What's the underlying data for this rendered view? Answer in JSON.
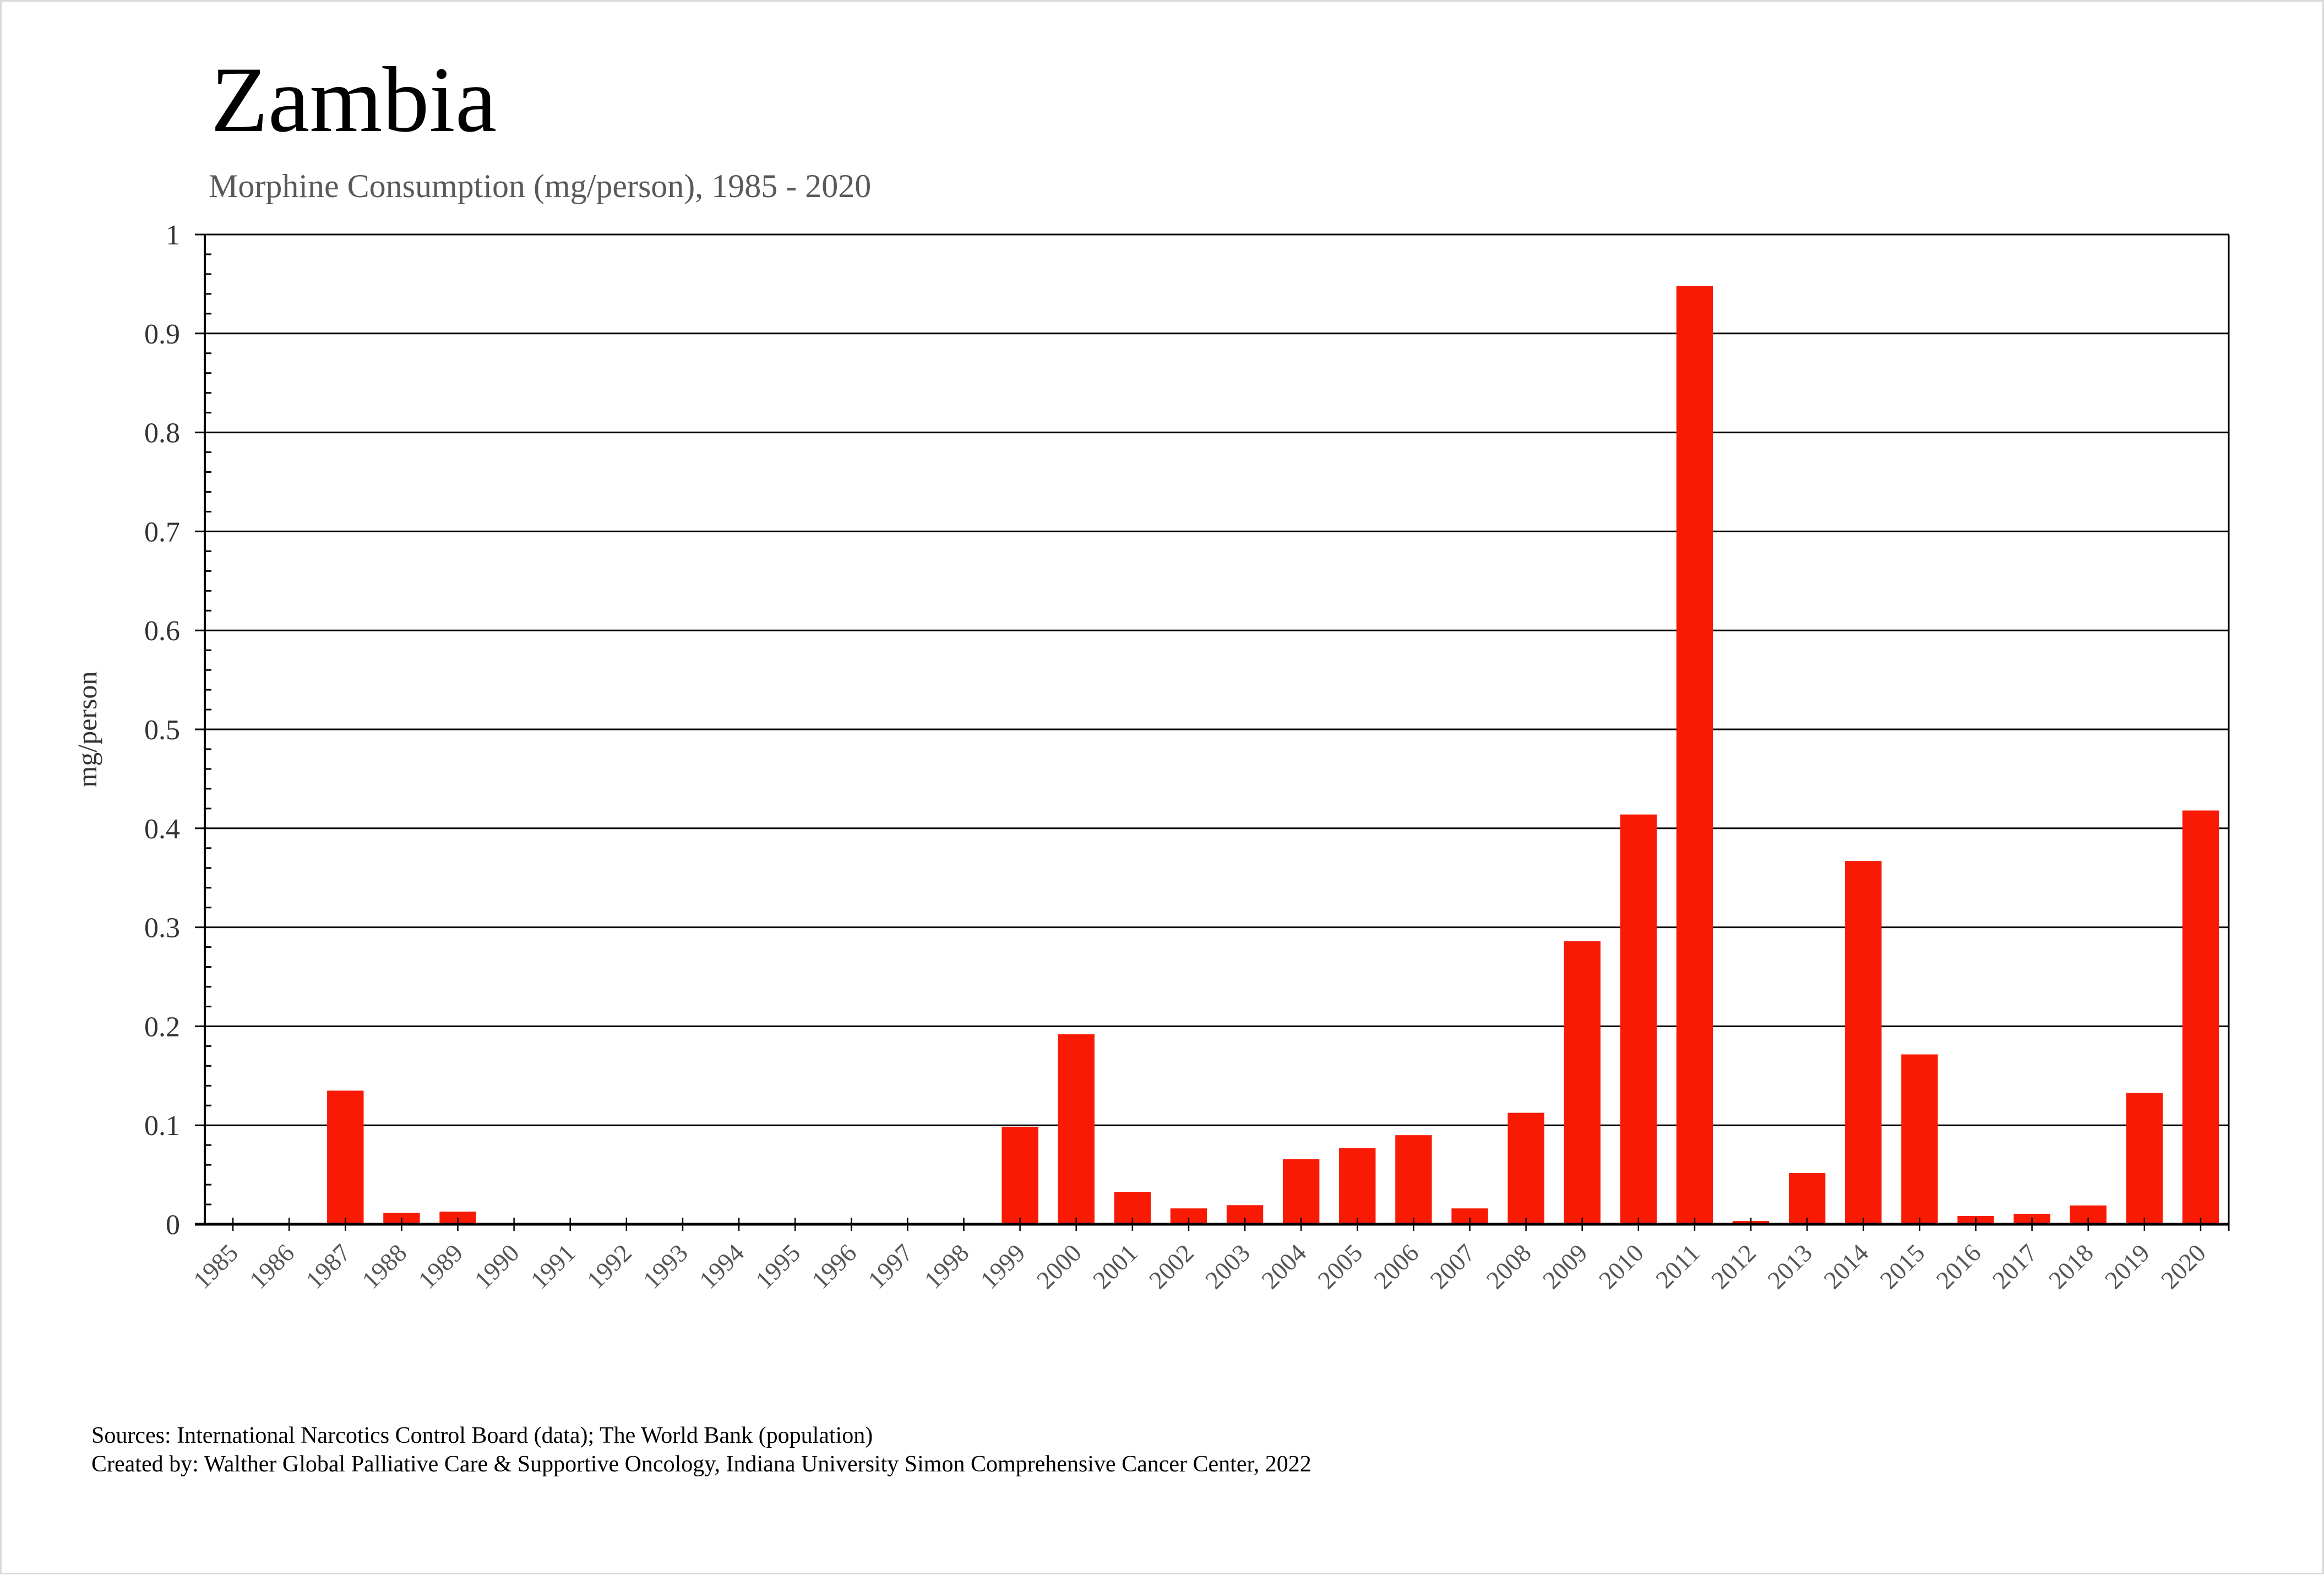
{
  "chart_data": {
    "type": "bar",
    "title": "Zambia",
    "subtitle": "Morphine Consumption (mg/person), 1985 - 2020",
    "xlabel": "",
    "ylabel": "mg/person",
    "ylim": [
      0,
      1
    ],
    "yticks": [
      "0",
      "0.1",
      "0.2",
      "0.3",
      "0.4",
      "0.5",
      "0.6",
      "0.7",
      "0.8",
      "0.9",
      "1"
    ],
    "grid": true,
    "categories": [
      "1985",
      "1986",
      "1987",
      "1988",
      "1989",
      "1990",
      "1991",
      "1992",
      "1993",
      "1994",
      "1995",
      "1996",
      "1997",
      "1998",
      "1999",
      "2000",
      "2001",
      "2002",
      "2003",
      "2004",
      "2005",
      "2006",
      "2007",
      "2008",
      "2009",
      "2010",
      "2011",
      "2012",
      "2013",
      "2014",
      "2015",
      "2016",
      "2017",
      "2018",
      "2019",
      "2020"
    ],
    "values": [
      0,
      0,
      0.135,
      0.0115,
      0.0128,
      0,
      0,
      0,
      0,
      0,
      0,
      0,
      0,
      0,
      0.0985,
      0.192,
      0.0327,
      0.016,
      0.0193,
      0.0658,
      0.0768,
      0.09,
      0.016,
      0.1126,
      0.286,
      0.414,
      0.948,
      0.0033,
      0.0517,
      0.367,
      0.1716,
      0.0084,
      0.0106,
      0.019,
      0.1327,
      0.418
    ],
    "bar_color": "#f91a06"
  },
  "footer": {
    "sources": "Sources: International Narcotics Control Board (data); The World Bank (population)",
    "credit": "Created by: Walther  Global Palliative Care & Supportive Oncology, Indiana University Simon Comprehensive Cancer Center, 2022"
  }
}
